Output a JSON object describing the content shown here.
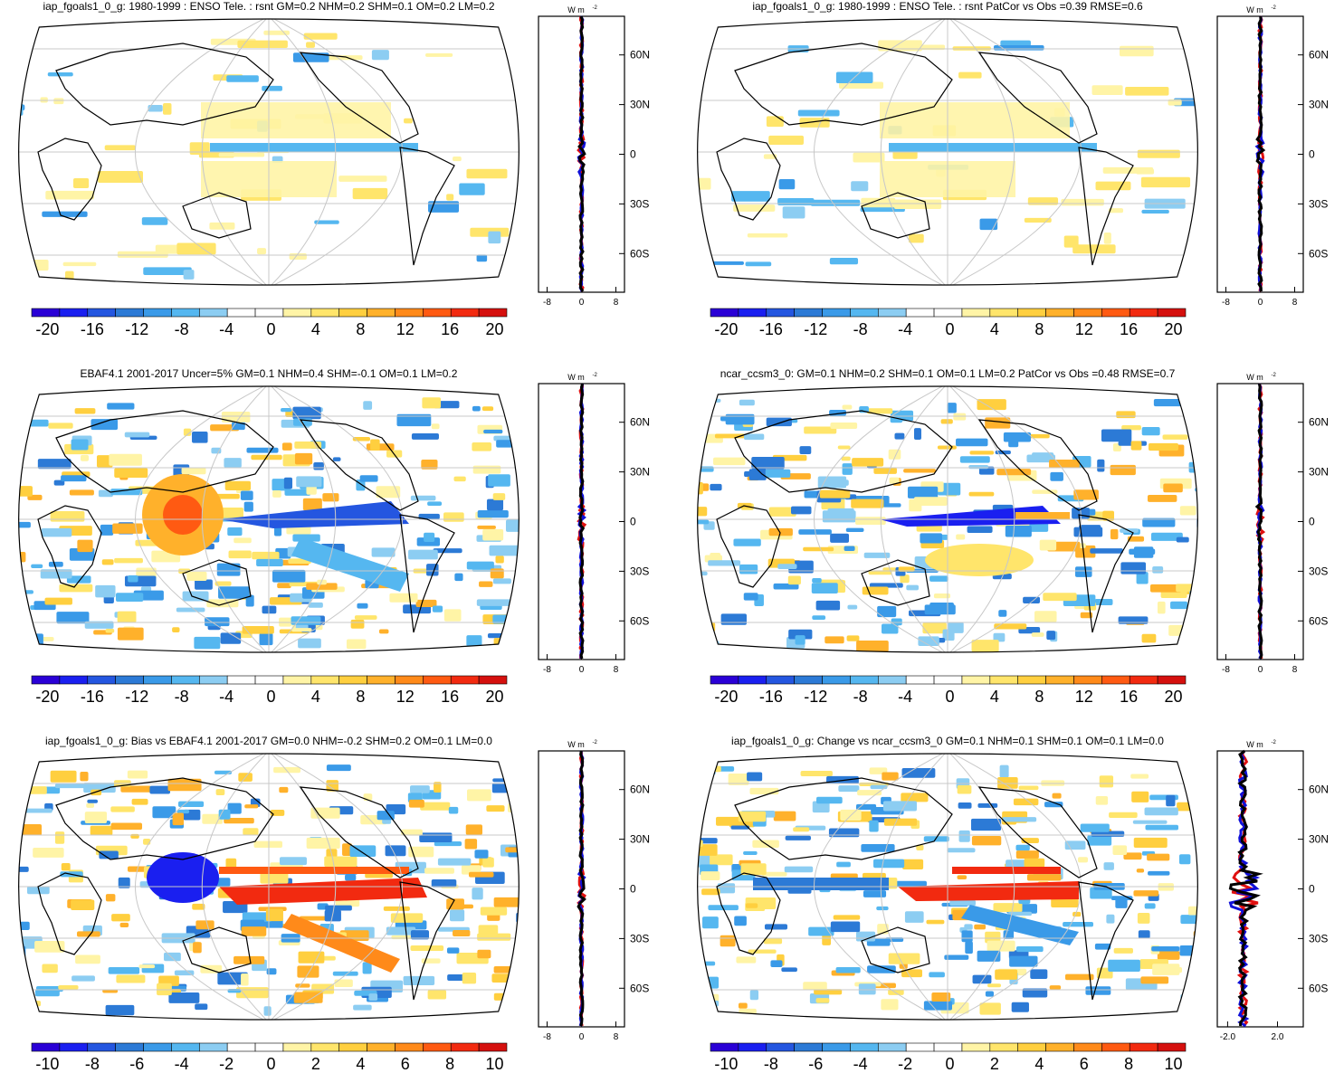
{
  "panels": [
    {
      "title": "iap_fgoals1_0_g: 1980-1999 : ENSO Tele. : rsnt GM=0.2 NHM=0.2 SHM=0.1 OM=0.2 LM=0.2",
      "colorbar": [
        "-20",
        "-16",
        "-12",
        "-8",
        "-4",
        "0",
        "4",
        "8",
        "12",
        "16",
        "20"
      ],
      "zonal_x_ticks": [
        "-8",
        "0",
        "8"
      ],
      "zonal_units": "W m",
      "zonal_units_sup": "-2"
    },
    {
      "title": "iap_fgoals1_0_g: 1980-1999 : ENSO Tele. : rsnt PatCor vs Obs =0.39 RMSE=0.6",
      "colorbar": [
        "-20",
        "-16",
        "-12",
        "-8",
        "-4",
        "0",
        "4",
        "8",
        "12",
        "16",
        "20"
      ],
      "zonal_x_ticks": [
        "-8",
        "0",
        "8"
      ],
      "zonal_units": "W m",
      "zonal_units_sup": "-2"
    },
    {
      "title": "EBAF4.1 2001-2017 Uncer=5% GM=0.1 NHM=0.4 SHM=-0.1 OM=0.1 LM=0.2",
      "colorbar": [
        "-20",
        "-16",
        "-12",
        "-8",
        "-4",
        "0",
        "4",
        "8",
        "12",
        "16",
        "20"
      ],
      "zonal_x_ticks": [
        "-8",
        "0",
        "8"
      ],
      "zonal_units": "W m",
      "zonal_units_sup": "-2"
    },
    {
      "title": "ncar_ccsm3_0: GM=0.1 NHM=0.2 SHM=0.1 OM=0.1 LM=0.2 PatCor vs Obs =0.48 RMSE=0.7",
      "colorbar": [
        "-20",
        "-16",
        "-12",
        "-8",
        "-4",
        "0",
        "4",
        "8",
        "12",
        "16",
        "20"
      ],
      "zonal_x_ticks": [
        "-8",
        "0",
        "8"
      ],
      "zonal_units": "W m",
      "zonal_units_sup": "-2"
    },
    {
      "title": "iap_fgoals1_0_g: Bias vs EBAF4.1 2001-2017 GM=0.0 NHM=-0.2 SHM=0.2 OM=0.1 LM=0.0",
      "colorbar": [
        "-10",
        "-8",
        "-6",
        "-4",
        "-2",
        "0",
        "2",
        "4",
        "6",
        "8",
        "10"
      ],
      "zonal_x_ticks": [
        "-8",
        "0",
        "8"
      ],
      "zonal_units": "W m",
      "zonal_units_sup": "-2"
    },
    {
      "title": "iap_fgoals1_0_g: Change vs ncar_ccsm3_0 GM=0.1 NHM=0.1 SHM=0.1 OM=0.1 LM=0.0",
      "colorbar": [
        "-10",
        "-8",
        "-6",
        "-4",
        "-2",
        "0",
        "2",
        "4",
        "6",
        "8",
        "10"
      ],
      "zonal_x_ticks": [
        "-2.0",
        "2.0"
      ],
      "zonal_units": "W m",
      "zonal_units_sup": "-2"
    }
  ],
  "lat_labels": [
    "60N",
    "30N",
    "0",
    "30S",
    "60S"
  ],
  "colors": {
    "palette": [
      "#2a00d6",
      "#1a1ff0",
      "#2456e0",
      "#2c7ad6",
      "#3a9ae8",
      "#55b7f0",
      "#8ccdf2",
      "#ffffff",
      "#ffffff",
      "#fff4a6",
      "#ffe56b",
      "#ffcf3f",
      "#ffb12b",
      "#ff8a1a",
      "#ff5a12",
      "#f22a10",
      "#d5100e"
    ],
    "coast": "#000000",
    "grid": "#c8c8c8",
    "line_red": "#e01010",
    "line_blue": "#1010d8",
    "line_black": "#000000"
  }
}
